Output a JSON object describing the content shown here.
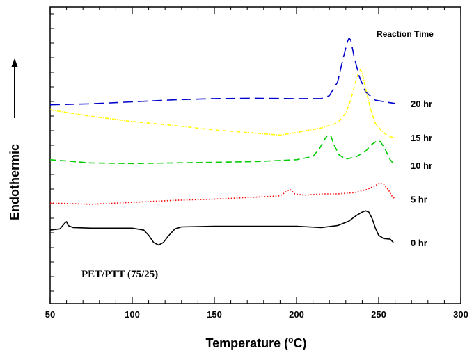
{
  "chart_data": {
    "type": "line",
    "xlabel_prefix": "Temperature (",
    "xlabel_degree": "o",
    "xlabel_suffix": "C)",
    "ylabel": "Endothermic",
    "xlim": [
      50,
      300
    ],
    "x_ticks": [
      50,
      100,
      150,
      200,
      250,
      300
    ],
    "legend_title": "Reaction Time",
    "annotation": "PET/PTT (75/25)",
    "grid": false,
    "series": [
      {
        "name": "20 hr",
        "color": "#0000cc",
        "dash": "14,7",
        "points": [
          [
            50,
            1.0
          ],
          [
            75,
            1.15
          ],
          [
            100,
            1.45
          ],
          [
            125,
            1.75
          ],
          [
            150,
            1.95
          ],
          [
            175,
            2.0
          ],
          [
            200,
            1.95
          ],
          [
            215,
            1.95
          ],
          [
            220,
            2.4
          ],
          [
            225,
            4.5
          ],
          [
            228,
            7.8
          ],
          [
            231,
            10.8
          ],
          [
            232,
            11.3
          ],
          [
            233,
            11.0
          ],
          [
            235,
            8.5
          ],
          [
            238,
            5.5
          ],
          [
            242,
            3.0
          ],
          [
            248,
            1.7
          ],
          [
            255,
            1.4
          ],
          [
            260,
            1.2
          ]
        ]
      },
      {
        "name": "15 hr",
        "color": "#ffff00",
        "dash": "5,2,1,2",
        "points": [
          [
            50,
            0.2
          ],
          [
            75,
            -0.8
          ],
          [
            100,
            -1.6
          ],
          [
            125,
            -2.2
          ],
          [
            150,
            -2.9
          ],
          [
            175,
            -3.4
          ],
          [
            190,
            -3.7
          ],
          [
            200,
            -3.3
          ],
          [
            215,
            -2.6
          ],
          [
            225,
            -1.8
          ],
          [
            230,
            -0.3
          ],
          [
            233,
            1.8
          ],
          [
            236,
            4.6
          ],
          [
            238,
            6.2
          ],
          [
            239,
            6.4
          ],
          [
            240,
            5.9
          ],
          [
            242,
            3.6
          ],
          [
            245,
            0.4
          ],
          [
            248,
            -1.9
          ],
          [
            252,
            -3.1
          ],
          [
            256,
            -3.9
          ],
          [
            260,
            -4.1
          ]
        ]
      },
      {
        "name": "10 hr",
        "color": "#00cc00",
        "dash": "9,5",
        "points": [
          [
            50,
            -7.5
          ],
          [
            75,
            -8.0
          ],
          [
            100,
            -8.1
          ],
          [
            125,
            -8.0
          ],
          [
            150,
            -7.9
          ],
          [
            175,
            -7.8
          ],
          [
            200,
            -7.5
          ],
          [
            210,
            -7.0
          ],
          [
            214,
            -5.8
          ],
          [
            217,
            -4.4
          ],
          [
            219,
            -3.7
          ],
          [
            221,
            -3.9
          ],
          [
            223,
            -5.3
          ],
          [
            226,
            -6.8
          ],
          [
            230,
            -7.4
          ],
          [
            236,
            -7.1
          ],
          [
            242,
            -6.2
          ],
          [
            246,
            -5.1
          ],
          [
            249,
            -4.6
          ],
          [
            251,
            -4.7
          ],
          [
            254,
            -5.9
          ],
          [
            257,
            -7.5
          ],
          [
            260,
            -8.4
          ]
        ]
      },
      {
        "name": "5 hr",
        "color": "#ff0000",
        "dash": "1.5,2.5",
        "points": [
          [
            50,
            -14.2
          ],
          [
            75,
            -14.4
          ],
          [
            100,
            -14.1
          ],
          [
            125,
            -13.8
          ],
          [
            150,
            -13.6
          ],
          [
            175,
            -13.3
          ],
          [
            190,
            -13.1
          ],
          [
            194,
            -12.4
          ],
          [
            196,
            -12.1
          ],
          [
            199,
            -12.8
          ],
          [
            205,
            -13.0
          ],
          [
            215,
            -12.8
          ],
          [
            225,
            -12.8
          ],
          [
            235,
            -12.6
          ],
          [
            243,
            -12.1
          ],
          [
            248,
            -11.5
          ],
          [
            251,
            -11.1
          ],
          [
            253,
            -11.3
          ],
          [
            256,
            -12.2
          ],
          [
            258,
            -13.1
          ],
          [
            260,
            -13.6
          ]
        ]
      },
      {
        "name": "0 hr",
        "color": "#000000",
        "dash": "",
        "points": [
          [
            50,
            -18.4
          ],
          [
            56,
            -18.2
          ],
          [
            59,
            -17.3
          ],
          [
            60,
            -17.1
          ],
          [
            61,
            -17.7
          ],
          [
            64,
            -18.0
          ],
          [
            75,
            -18.1
          ],
          [
            100,
            -18.1
          ],
          [
            107,
            -18.4
          ],
          [
            110,
            -19.2
          ],
          [
            113,
            -20.3
          ],
          [
            116,
            -20.7
          ],
          [
            119,
            -20.3
          ],
          [
            122,
            -19.3
          ],
          [
            126,
            -18.2
          ],
          [
            130,
            -17.9
          ],
          [
            150,
            -17.8
          ],
          [
            175,
            -17.8
          ],
          [
            200,
            -17.8
          ],
          [
            215,
            -18.0
          ],
          [
            225,
            -17.7
          ],
          [
            232,
            -17.0
          ],
          [
            236,
            -16.2
          ],
          [
            240,
            -15.6
          ],
          [
            242,
            -15.4
          ],
          [
            244,
            -15.6
          ],
          [
            246,
            -16.6
          ],
          [
            248,
            -18.1
          ],
          [
            250,
            -19.2
          ],
          [
            253,
            -19.7
          ],
          [
            257,
            -19.8
          ],
          [
            259,
            -20.3
          ]
        ]
      }
    ]
  }
}
